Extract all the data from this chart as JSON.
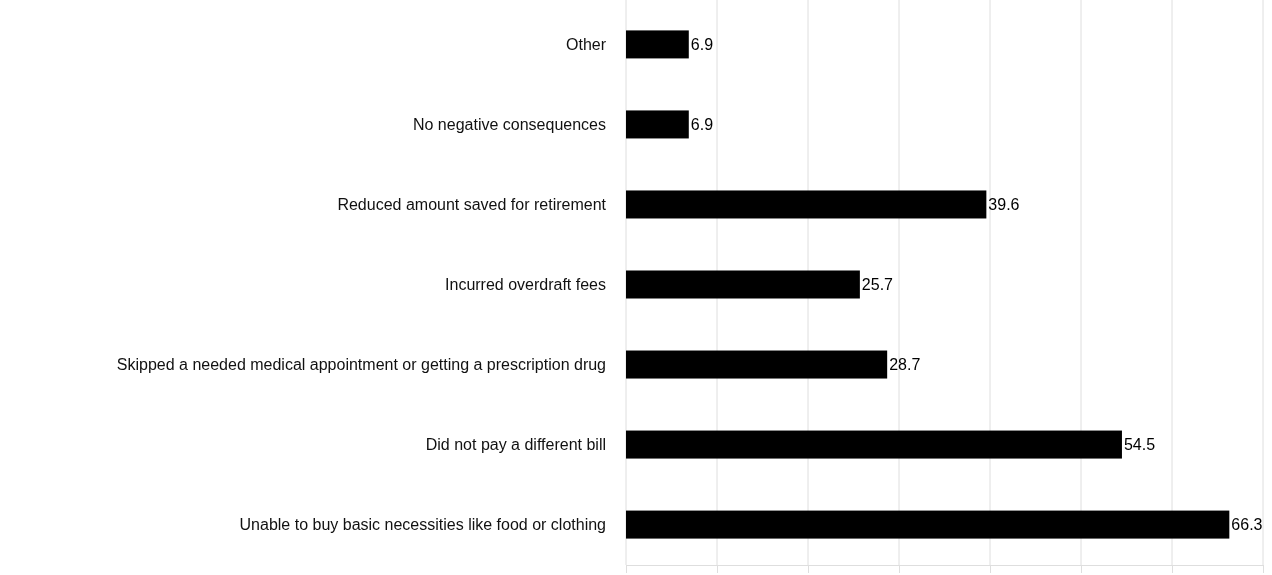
{
  "chart_data": {
    "type": "bar",
    "orientation": "horizontal",
    "categories": [
      "Other",
      "No negative consequences",
      "Reduced amount saved for retirement",
      "Incurred overdraft fees",
      "Skipped a needed medical appointment or getting a prescription drug",
      "Did not pay a different bill",
      "Unable to buy basic necessities like food or clothing"
    ],
    "values": [
      6.9,
      6.9,
      39.6,
      25.7,
      28.7,
      54.5,
      66.3
    ],
    "color": "#000000",
    "xlim": [
      0,
      70
    ],
    "xticks": [
      {
        "value": 0,
        "label": null
      },
      {
        "value": 10,
        "label": null
      },
      {
        "value": 20,
        "label": null
      },
      {
        "value": 30,
        "label": null
      },
      {
        "value": 40,
        "label": null
      },
      {
        "value": 50,
        "label": null
      },
      {
        "value": 60,
        "label": null
      },
      {
        "value": 70,
        "label": null
      }
    ],
    "tick_labels": "y",
    "grid": "x",
    "data_labels": true
  }
}
